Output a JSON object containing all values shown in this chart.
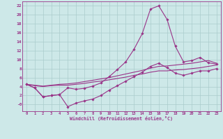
{
  "background_color": "#cde8e8",
  "line_color": "#993388",
  "grid_color": "#aacccc",
  "xlabel": "Windchill (Refroidissement éolien,°C)",
  "xlim": [
    -0.5,
    23.5
  ],
  "ylim": [
    -1.5,
    23
  ],
  "xticks": [
    0,
    1,
    2,
    3,
    4,
    5,
    6,
    7,
    8,
    9,
    10,
    11,
    12,
    13,
    14,
    15,
    16,
    17,
    18,
    19,
    20,
    21,
    22,
    23
  ],
  "yticks": [
    0,
    2,
    4,
    6,
    8,
    10,
    12,
    14,
    16,
    18,
    20,
    22
  ],
  "ytick_labels": [
    "-0",
    "2",
    "4",
    "6",
    "8",
    "10",
    "12",
    "14",
    "16",
    "18",
    "20",
    "22"
  ],
  "series1_x": [
    0,
    1,
    2,
    3,
    4,
    5,
    6,
    7,
    8,
    9,
    10,
    11,
    12,
    13,
    14,
    15,
    16,
    17,
    18,
    19,
    20,
    21,
    22,
    23
  ],
  "series1_y": [
    4.5,
    3.7,
    1.7,
    2.0,
    2.2,
    3.7,
    3.4,
    3.6,
    4.1,
    4.8,
    6.2,
    7.8,
    9.5,
    12.3,
    15.8,
    21.3,
    22.0,
    19.0,
    13.0,
    9.5,
    9.8,
    10.5,
    9.3,
    9.0
  ],
  "series2_x": [
    0,
    1,
    2,
    3,
    4,
    5,
    6,
    7,
    8,
    9,
    10,
    11,
    12,
    13,
    14,
    15,
    16,
    17,
    18,
    19,
    20,
    21,
    22,
    23
  ],
  "series2_y": [
    4.5,
    3.7,
    1.7,
    2.0,
    2.2,
    -0.5,
    0.3,
    0.8,
    1.2,
    2.0,
    3.2,
    4.2,
    5.2,
    6.2,
    7.2,
    8.5,
    9.2,
    8.2,
    7.0,
    6.5,
    7.0,
    7.5,
    7.5,
    8.0
  ],
  "series3_x": [
    0,
    1,
    2,
    3,
    4,
    5,
    6,
    7,
    8,
    9,
    10,
    11,
    12,
    13,
    14,
    15,
    16,
    17,
    18,
    19,
    20,
    21,
    22,
    23
  ],
  "series3_y": [
    4.5,
    4.2,
    4.0,
    4.2,
    4.3,
    4.3,
    4.5,
    4.7,
    5.0,
    5.2,
    5.5,
    5.8,
    6.1,
    6.5,
    6.8,
    7.2,
    7.5,
    7.5,
    7.7,
    7.8,
    8.0,
    8.2,
    8.5,
    8.8
  ],
  "series4_x": [
    0,
    1,
    2,
    3,
    4,
    5,
    6,
    7,
    8,
    9,
    10,
    11,
    12,
    13,
    14,
    15,
    16,
    17,
    18,
    19,
    20,
    21,
    22,
    23
  ],
  "series4_y": [
    4.5,
    4.3,
    4.1,
    4.3,
    4.5,
    4.6,
    4.8,
    5.1,
    5.4,
    5.7,
    6.0,
    6.4,
    6.8,
    7.2,
    7.6,
    8.1,
    8.5,
    8.6,
    8.8,
    9.0,
    9.2,
    9.5,
    9.8,
    9.2
  ]
}
